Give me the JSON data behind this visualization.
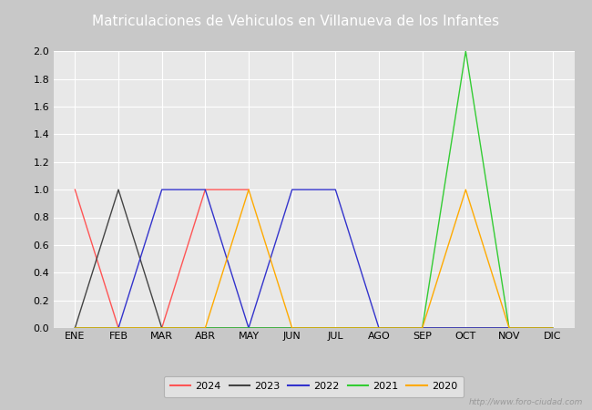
{
  "title": "Matriculaciones de Vehiculos en Villanueva de los Infantes",
  "title_bg_color": "#4472c4",
  "title_text_color": "#ffffff",
  "months": [
    "ENE",
    "FEB",
    "MAR",
    "ABR",
    "MAY",
    "JUN",
    "JUL",
    "AGO",
    "SEP",
    "OCT",
    "NOV",
    "DIC"
  ],
  "series": {
    "2024": {
      "color": "#ff5555",
      "values": [
        1,
        0,
        0,
        1,
        1,
        null,
        null,
        null,
        null,
        null,
        null,
        null
      ]
    },
    "2023": {
      "color": "#444444",
      "values": [
        0,
        1,
        0,
        0,
        0,
        0,
        0,
        0,
        0,
        0,
        0,
        0
      ]
    },
    "2022": {
      "color": "#3333cc",
      "values": [
        0,
        0,
        1,
        1,
        0,
        1,
        1,
        0,
        0,
        0,
        0,
        0
      ]
    },
    "2021": {
      "color": "#33cc33",
      "values": [
        0,
        0,
        0,
        0,
        0,
        0,
        0,
        0,
        0,
        2,
        0,
        0
      ]
    },
    "2020": {
      "color": "#ffaa00",
      "values": [
        0,
        0,
        0,
        0,
        1,
        0,
        0,
        0,
        0,
        1,
        0,
        0
      ]
    }
  },
  "series_order": [
    "2024",
    "2023",
    "2022",
    "2021",
    "2020"
  ],
  "ylim": [
    0,
    2.0
  ],
  "yticks": [
    0.0,
    0.2,
    0.4,
    0.6,
    0.8,
    1.0,
    1.2,
    1.4,
    1.6,
    1.8,
    2.0
  ],
  "plot_bg_color": "#e8e8e8",
  "fig_bg_color": "#c8c8c8",
  "grid_color": "#ffffff",
  "watermark": "http://www.foro-ciudad.com",
  "title_fontsize": 11,
  "tick_fontsize": 8,
  "legend_fontsize": 8
}
